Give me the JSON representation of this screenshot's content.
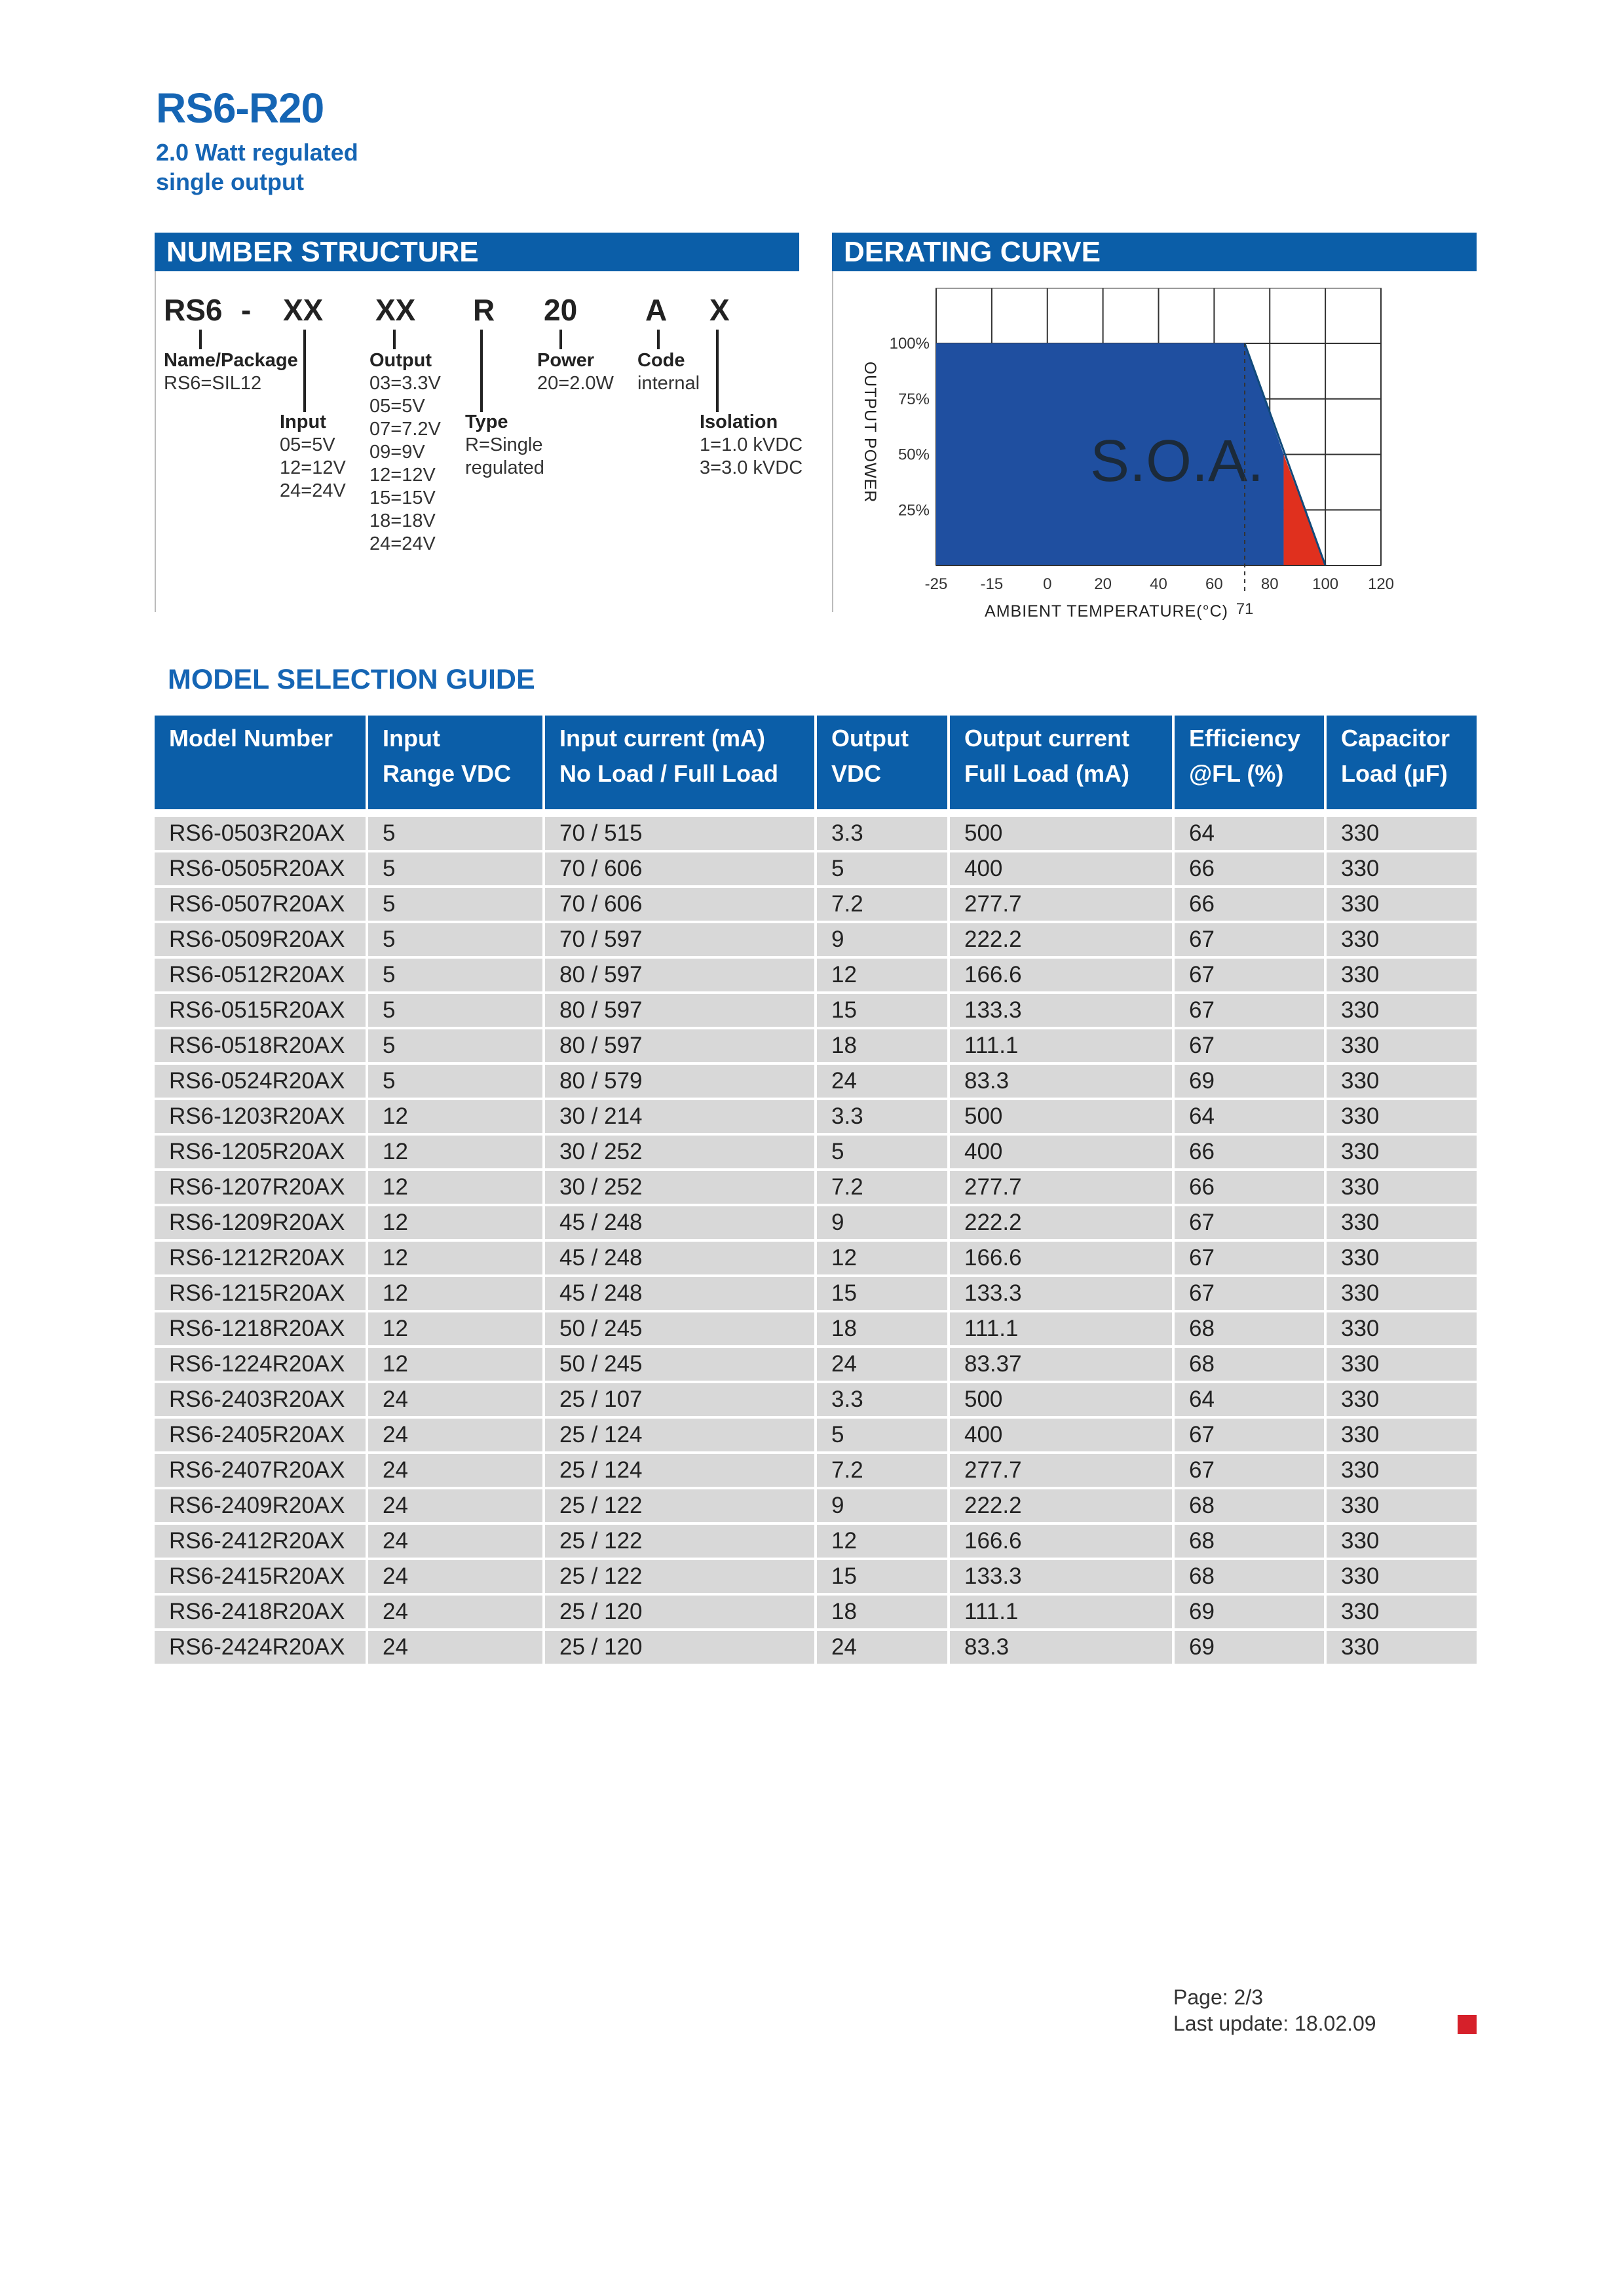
{
  "header": {
    "title": "RS6-R20",
    "subtitle_line1": "2.0 Watt regulated",
    "subtitle_line2": "single output"
  },
  "number_structure": {
    "heading": "NUMBER STRUCTURE",
    "codes": [
      "RS6",
      "-",
      "XX",
      "XX",
      "R",
      "20",
      "A",
      "X"
    ],
    "fields": {
      "name": {
        "label": "Name/Package",
        "values": [
          "RS6=SIL12"
        ]
      },
      "input": {
        "label": "Input",
        "values": [
          "05=5V",
          "12=12V",
          "24=24V"
        ]
      },
      "output": {
        "label": "Output",
        "values": [
          "03=3.3V",
          "05=5V",
          "07=7.2V",
          "09=9V",
          "12=12V",
          "15=15V",
          "18=18V",
          "24=24V"
        ]
      },
      "type": {
        "label": "Type",
        "values": [
          "R=Single",
          "regulated"
        ]
      },
      "power": {
        "label": "Power",
        "values": [
          "20=2.0W"
        ]
      },
      "code": {
        "label": "Code",
        "values": [
          "internal"
        ]
      },
      "isolation": {
        "label": "Isolation",
        "values": [
          "1=1.0 kVDC",
          "3=3.0 kVDC"
        ]
      }
    }
  },
  "derating": {
    "heading": "DERATING CURVE"
  },
  "chart_data": {
    "type": "area",
    "title": "",
    "xlabel": "AMBIENT TEMPERATURE(°C)",
    "ylabel": "OUTPUT POWER",
    "x_ticks": [
      "-25",
      "-15",
      "0",
      "20",
      "40",
      "60",
      "80",
      "100",
      "120"
    ],
    "y_ticks": [
      "100%",
      "75%",
      "50%",
      "25%"
    ],
    "xlim": [
      -25,
      120
    ],
    "ylim": [
      0,
      100
    ],
    "grid": true,
    "series": [
      {
        "name": "S.O.A.",
        "color": "#1f4fa0",
        "points": [
          [
            -25,
            0
          ],
          [
            -25,
            100
          ],
          [
            71,
            100
          ],
          [
            85,
            50
          ],
          [
            85,
            0
          ]
        ]
      },
      {
        "color": "#e0301e",
        "points": [
          [
            85,
            50
          ],
          [
            100,
            0
          ],
          [
            85,
            0
          ]
        ]
      }
    ],
    "area_label": "S.O.A.",
    "marker": {
      "x": 71,
      "label": "71"
    }
  },
  "model_guide": {
    "heading": "MODEL SELECTION GUIDE",
    "columns": [
      [
        "Model Number",
        ""
      ],
      [
        "Input",
        "Range VDC"
      ],
      [
        "Input current (mA)",
        "No Load / Full Load"
      ],
      [
        "Output",
        "VDC"
      ],
      [
        "Output current",
        "Full Load (mA)"
      ],
      [
        "Efficiency",
        "@FL (%)"
      ],
      [
        "Capacitor",
        "Load (µF)"
      ]
    ],
    "rows": [
      [
        "RS6-0503R20AX",
        "5",
        "70 / 515",
        "3.3",
        "500",
        "64",
        "330"
      ],
      [
        "RS6-0505R20AX",
        "5",
        "70 / 606",
        "5",
        "400",
        "66",
        "330"
      ],
      [
        "RS6-0507R20AX",
        "5",
        "70 / 606",
        "7.2",
        "277.7",
        "66",
        "330"
      ],
      [
        "RS6-0509R20AX",
        "5",
        "70 / 597",
        "9",
        "222.2",
        "67",
        "330"
      ],
      [
        "RS6-0512R20AX",
        "5",
        "80 / 597",
        "12",
        "166.6",
        "67",
        "330"
      ],
      [
        "RS6-0515R20AX",
        "5",
        "80 / 597",
        "15",
        "133.3",
        "67",
        "330"
      ],
      [
        "RS6-0518R20AX",
        "5",
        "80 / 597",
        "18",
        "111.1",
        "67",
        "330"
      ],
      [
        "RS6-0524R20AX",
        "5",
        "80 / 579",
        "24",
        "83.3",
        "69",
        "330"
      ],
      [
        "RS6-1203R20AX",
        "12",
        "30 / 214",
        "3.3",
        "500",
        "64",
        "330"
      ],
      [
        "RS6-1205R20AX",
        "12",
        "30 / 252",
        "5",
        "400",
        "66",
        "330"
      ],
      [
        "RS6-1207R20AX",
        "12",
        "30 / 252",
        "7.2",
        "277.7",
        "66",
        "330"
      ],
      [
        "RS6-1209R20AX",
        "12",
        "45 / 248",
        "9",
        "222.2",
        "67",
        "330"
      ],
      [
        "RS6-1212R20AX",
        "12",
        "45 / 248",
        "12",
        "166.6",
        "67",
        "330"
      ],
      [
        "RS6-1215R20AX",
        "12",
        "45 / 248",
        "15",
        "133.3",
        "67",
        "330"
      ],
      [
        "RS6-1218R20AX",
        "12",
        "50 / 245",
        "18",
        "111.1",
        "68",
        "330"
      ],
      [
        "RS6-1224R20AX",
        "12",
        "50 / 245",
        "24",
        "83.37",
        "68",
        "330"
      ],
      [
        "RS6-2403R20AX",
        "24",
        "25 / 107",
        "3.3",
        "500",
        "64",
        "330"
      ],
      [
        "RS6-2405R20AX",
        "24",
        "25 / 124",
        "5",
        "400",
        "67",
        "330"
      ],
      [
        "RS6-2407R20AX",
        "24",
        "25 / 124",
        "7.2",
        "277.7",
        "67",
        "330"
      ],
      [
        "RS6-2409R20AX",
        "24",
        "25 / 122",
        "9",
        "222.2",
        "68",
        "330"
      ],
      [
        "RS6-2412R20AX",
        "24",
        "25 / 122",
        "12",
        "166.6",
        "68",
        "330"
      ],
      [
        "RS6-2415R20AX",
        "24",
        "25 / 122",
        "15",
        "133.3",
        "68",
        "330"
      ],
      [
        "RS6-2418R20AX",
        "24",
        "25 / 120",
        "18",
        "111.1",
        "69",
        "330"
      ],
      [
        "RS6-2424R20AX",
        "24",
        "25 / 120",
        "24",
        "83.3",
        "69",
        "330"
      ]
    ]
  },
  "footer": {
    "page": "Page: 2/3",
    "last_update": "Last update: 18.02.09",
    "marker_color": "#d6202a"
  }
}
